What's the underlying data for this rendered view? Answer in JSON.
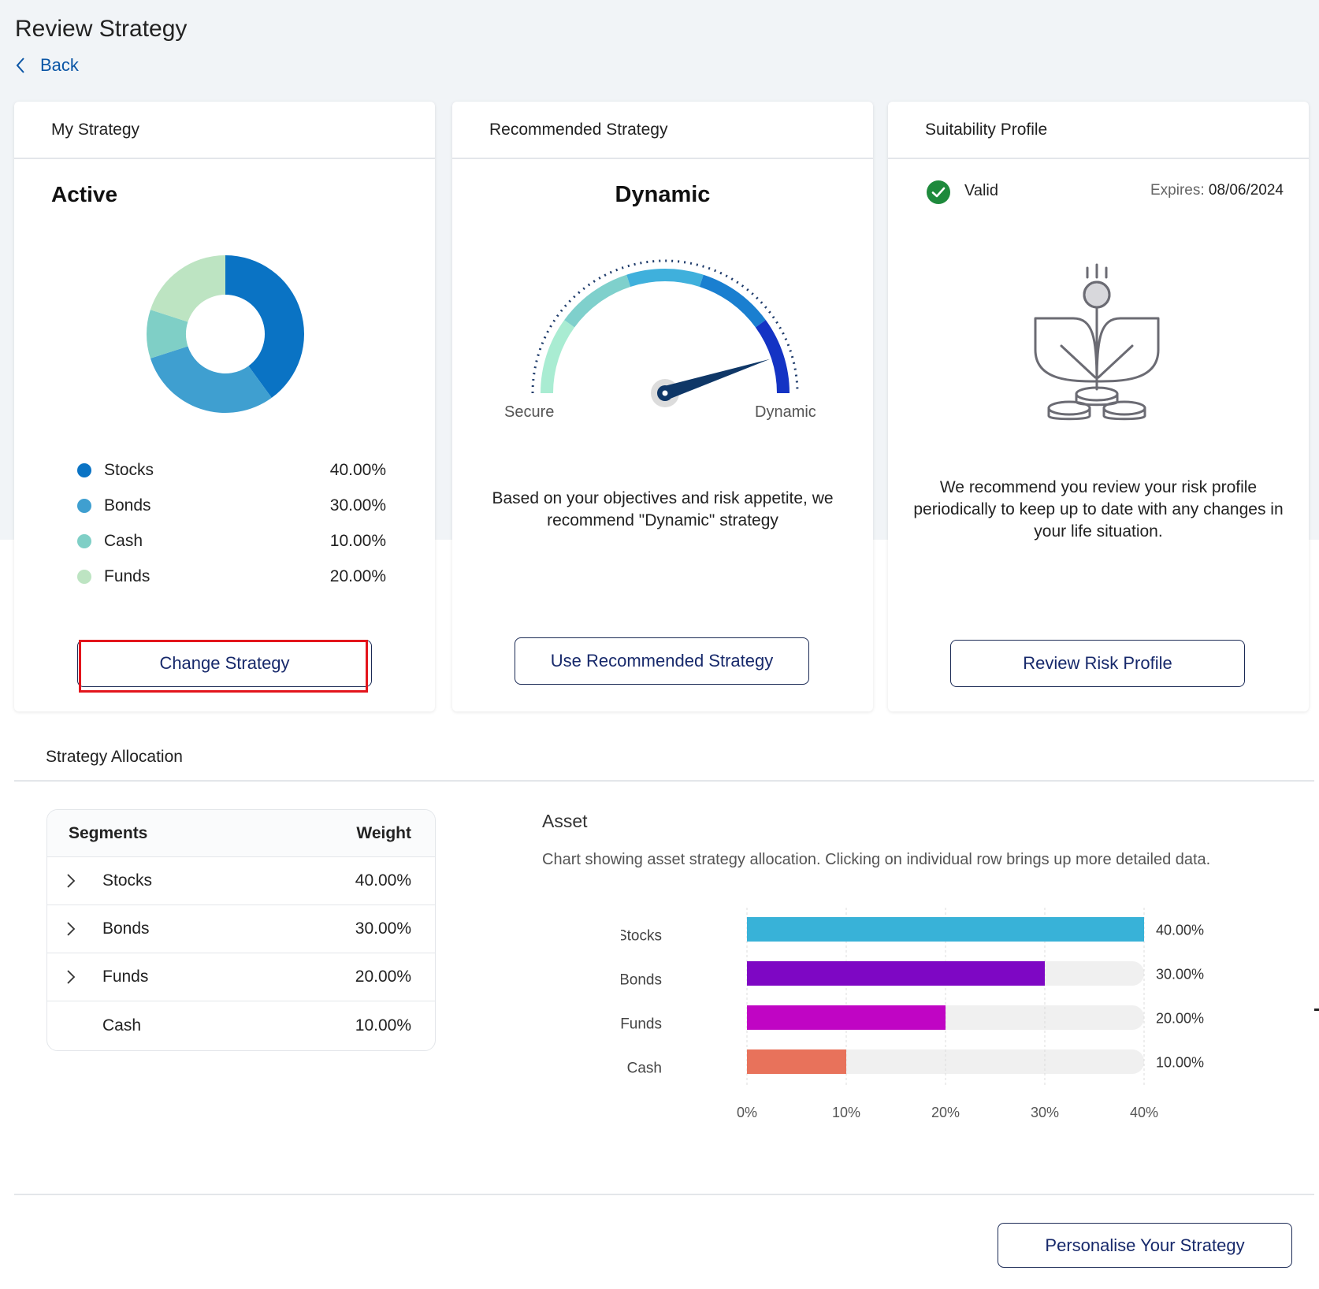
{
  "page": {
    "title": "Review Strategy",
    "back_label": "Back"
  },
  "my_strategy": {
    "header": "My Strategy",
    "status": "Active",
    "donut": [
      {
        "name": "Stocks",
        "value": 40,
        "color": "#0a73c4"
      },
      {
        "name": "Bonds",
        "value": 30,
        "color": "#3f9fd0"
      },
      {
        "name": "Cash",
        "value": 10,
        "color": "#7fcfc6"
      },
      {
        "name": "Funds",
        "value": 20,
        "color": "#bde4c2"
      }
    ],
    "legend": [
      {
        "name": "Stocks",
        "value": "40.00%",
        "color": "#0a73c4"
      },
      {
        "name": "Bonds",
        "value": "30.00%",
        "color": "#3f9fd0"
      },
      {
        "name": "Cash",
        "value": "10.00%",
        "color": "#7fcfc6"
      },
      {
        "name": "Funds",
        "value": "20.00%",
        "color": "#bde4c2"
      }
    ],
    "button_label": "Change Strategy"
  },
  "recommended": {
    "header": "Recommended Strategy",
    "title": "Dynamic",
    "gauge_min_label": "Secure",
    "gauge_max_label": "Dynamic",
    "gauge_level": 0.9,
    "description": "Based on your objectives and risk appetite, we recommend \"Dynamic\" strategy",
    "button_label": "Use Recommended Strategy"
  },
  "suitability": {
    "header": "Suitability Profile",
    "status": "Valid",
    "expires_label": "Expires:",
    "expires_date": "08/06/2024",
    "description": "We recommend you review your risk profile periodically to keep up to date with any changes in your life situation.",
    "button_label": "Review Risk Profile"
  },
  "allocation": {
    "header": "Strategy Allocation",
    "table": {
      "col_segments": "Segments",
      "col_weight": "Weight",
      "rows": [
        {
          "name": "Stocks",
          "weight": "40.00%",
          "expandable": true
        },
        {
          "name": "Bonds",
          "weight": "30.00%",
          "expandable": true
        },
        {
          "name": "Funds",
          "weight": "20.00%",
          "expandable": true
        },
        {
          "name": "Cash",
          "weight": "10.00%",
          "expandable": false
        }
      ]
    },
    "asset_title": "Asset",
    "asset_description": "Chart showing asset strategy allocation. Clicking on individual row brings up more detailed data."
  },
  "chart_data": {
    "type": "bar",
    "orientation": "horizontal",
    "categories": [
      "Stocks",
      "Bonds",
      "Funds",
      "Cash"
    ],
    "values": [
      40,
      30,
      20,
      10
    ],
    "value_labels": [
      "40.00%",
      "30.00%",
      "20.00%",
      "10.00%"
    ],
    "colors": [
      "#38b2d8",
      "#7e07c4",
      "#c005c4",
      "#e8725b"
    ],
    "track_color": "#f0f0f0",
    "xlim": [
      0,
      40
    ],
    "x_ticks": [
      "0%",
      "10%",
      "20%",
      "30%",
      "40%"
    ],
    "grid": true
  },
  "footer": {
    "button_label": "Personalise Your Strategy"
  }
}
